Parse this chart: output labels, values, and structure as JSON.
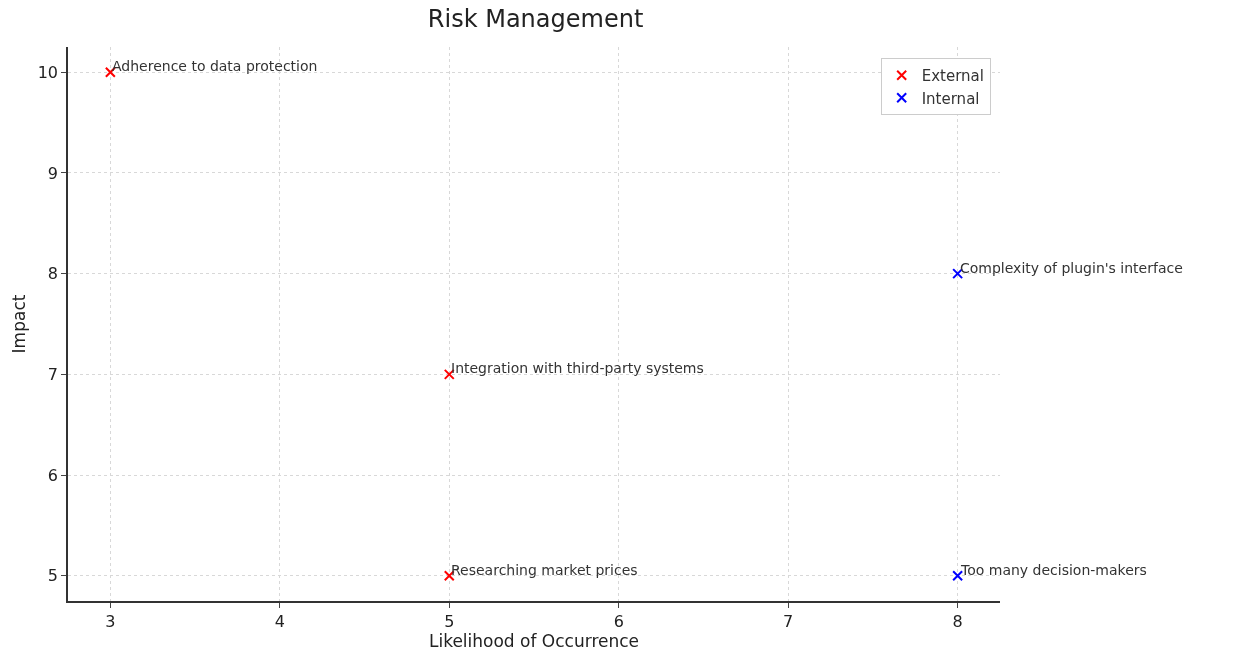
{
  "chart_data": {
    "type": "scatter",
    "title": "Risk Management",
    "xlabel": "Likelihood of Occurrence",
    "ylabel": "Impact",
    "series": [
      {
        "name": "External",
        "color": "#ff0000",
        "x": [
          3,
          5,
          5
        ],
        "values": [
          10,
          7,
          5
        ]
      },
      {
        "name": "Internal",
        "color": "#0000ff",
        "x": [
          8,
          8
        ],
        "values": [
          8,
          5
        ]
      }
    ],
    "annotations": [
      {
        "text": "Adherence to data protection",
        "x": 3,
        "y": 10
      },
      {
        "text": "Integration with third-party systems",
        "x": 5,
        "y": 7
      },
      {
        "text": "Researching market prices",
        "x": 5,
        "y": 5
      },
      {
        "text": "Complexity of plugin's interface",
        "x": 8,
        "y": 8
      },
      {
        "text": "Too many decision-makers",
        "x": 8,
        "y": 5
      }
    ],
    "xlim": [
      2.75,
      8.25
    ],
    "xticks": [
      3,
      4,
      5,
      6,
      7,
      8
    ],
    "ylim": [
      4.75,
      10.25
    ],
    "yticks": [
      5,
      6,
      7,
      8,
      9,
      10
    ],
    "grid": true,
    "legend": "top right",
    "marker": "cross"
  }
}
